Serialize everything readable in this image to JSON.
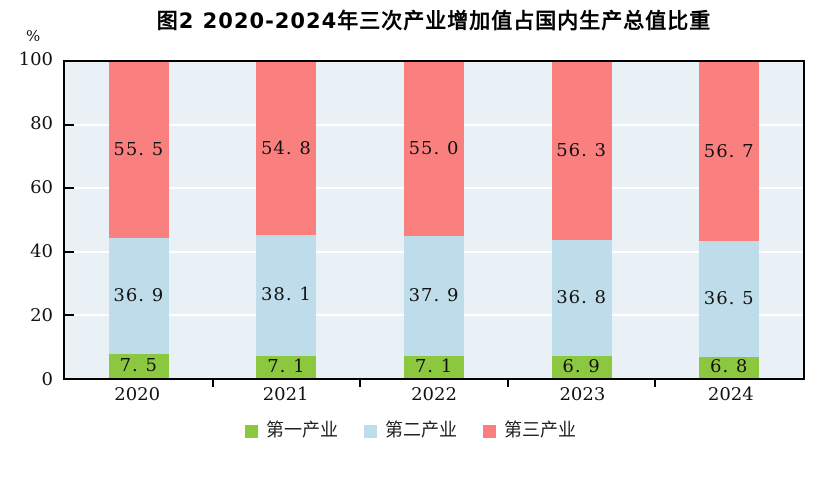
{
  "chart_data": {
    "type": "bar",
    "stacked": true,
    "title": "图2  2020-2024年三次产业增加值占国内生产总值比重",
    "ylabel": "%",
    "xlabel": "",
    "ylim": [
      0,
      100
    ],
    "y_ticks": [
      "0",
      "20",
      "40",
      "60",
      "80",
      "100"
    ],
    "gridlines": [
      20,
      40,
      60,
      80
    ],
    "grid": true,
    "legend_position": "bottom",
    "plot_background": "#E9F1F6",
    "gridline_color": "#FFFFFF",
    "categories": [
      "2020",
      "2021",
      "2022",
      "2023",
      "2024"
    ],
    "series": [
      {
        "name": "第一产业",
        "color": "#8CC740",
        "values": [
          "7.5",
          "7.1",
          "7.1",
          "6.9",
          "6.8"
        ]
      },
      {
        "name": "第二产业",
        "color": "#BEDCE9",
        "values": [
          "36.9",
          "38.1",
          "37.9",
          "36.8",
          "36.5"
        ]
      },
      {
        "name": "第三产业",
        "color": "#FA8080",
        "values": [
          "55.5",
          "54.8",
          "55.0",
          "56.3",
          "56.7"
        ]
      }
    ]
  }
}
